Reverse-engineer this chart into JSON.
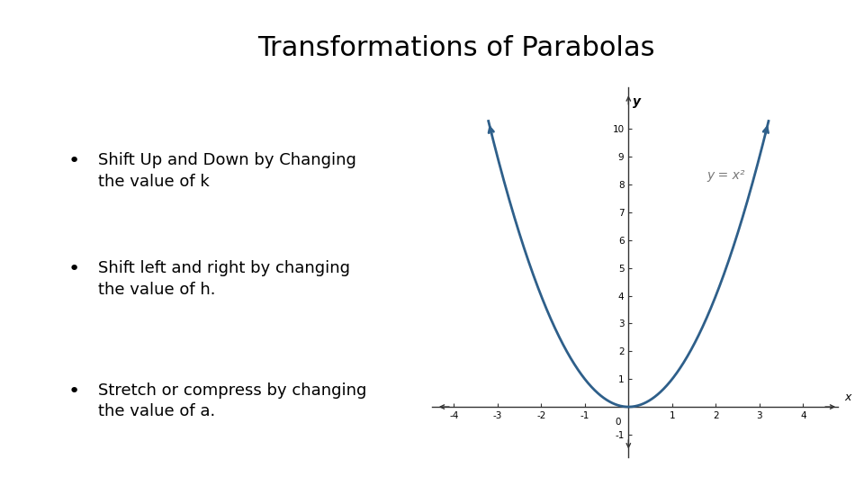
{
  "title": "Transformations of Parabolas",
  "title_fontsize": 22,
  "title_fontweight": "normal",
  "bullet_points": [
    "Shift Up and Down by Changing\nthe value of k",
    "Shift left and right by changing\nthe value of h.",
    "Stretch or compress by changing\nthe value of a."
  ],
  "bullet_fontsize": 13,
  "equation_label": "y = x²",
  "curve_color": "#2e5f8a",
  "axis_color": "#333333",
  "background_color": "#ffffff",
  "sidebar_color": "#aaaaaa",
  "xlim": [
    -4.5,
    4.8
  ],
  "ylim": [
    -1.8,
    11.5
  ],
  "xticks": [
    -4,
    -3,
    -2,
    -1,
    1,
    2,
    3,
    4
  ],
  "yticks": [
    -1,
    1,
    2,
    3,
    4,
    5,
    6,
    7,
    8,
    9,
    10
  ],
  "xlabel": "x",
  "ylabel": "y"
}
